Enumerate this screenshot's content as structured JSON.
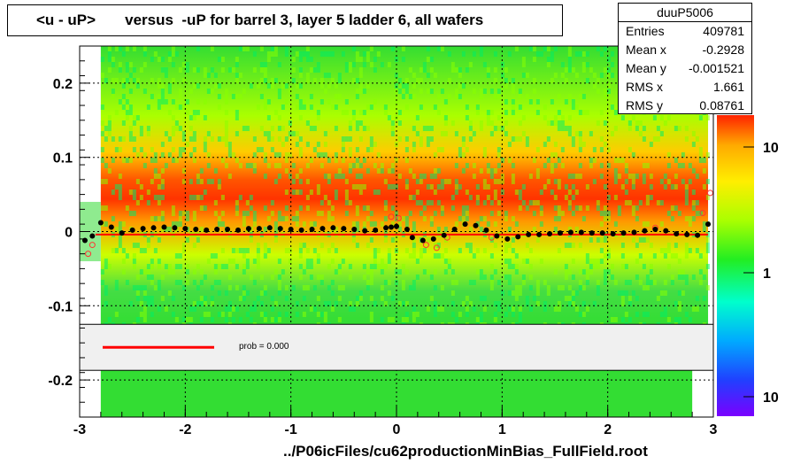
{
  "chart_data": {
    "type": "heatmap",
    "title": "<u - uP>       versus  -uP for barrel 3, layer 5 ladder 6, all wafers",
    "xlabel": "../P06icFiles/cu62productionMinBias_FullField.root",
    "ylabel": "",
    "xlim": [
      -3,
      3
    ],
    "ylim": [
      -0.25,
      0.25
    ],
    "x_ticks": [
      "-3",
      "-2",
      "-1",
      "0",
      "1",
      "2",
      "3"
    ],
    "y_ticks": [
      "-0.2",
      "-0.1",
      "0",
      "0.1",
      "0.2"
    ],
    "z_ticks": [
      "10",
      "1",
      "10"
    ],
    "z_scale": "log",
    "grid": true,
    "stats": {
      "name": "duuP5006",
      "entries": [
        {
          "label": "Entries",
          "value": "409781"
        },
        {
          "label": "Mean x",
          "value": "-0.2928"
        },
        {
          "label": "Mean y",
          "value": "-0.001521"
        },
        {
          "label": "RMS x",
          "value": "1.661"
        },
        {
          "label": "RMS y",
          "value": "0.08761"
        }
      ]
    },
    "fit_legend": "prob = 0.000",
    "profile_points": [
      [
        -2.95,
        -0.012
      ],
      [
        -2.88,
        -0.006
      ],
      [
        -2.8,
        0.012
      ],
      [
        -2.7,
        0.006
      ],
      [
        -2.6,
        -0.002
      ],
      [
        -2.5,
        0.002
      ],
      [
        -2.4,
        0.004
      ],
      [
        -2.3,
        0.005
      ],
      [
        -2.2,
        0.006
      ],
      [
        -2.1,
        0.005
      ],
      [
        -2.0,
        0.004
      ],
      [
        -1.9,
        0.003
      ],
      [
        -1.8,
        0.002
      ],
      [
        -1.7,
        0.003
      ],
      [
        -1.6,
        0.003
      ],
      [
        -1.5,
        0.002
      ],
      [
        -1.4,
        0.004
      ],
      [
        -1.3,
        0.004
      ],
      [
        -1.2,
        0.005
      ],
      [
        -1.1,
        0.004
      ],
      [
        -1.0,
        0.003
      ],
      [
        -0.9,
        0.002
      ],
      [
        -0.8,
        0.003
      ],
      [
        -0.7,
        0.004
      ],
      [
        -0.6,
        0.005
      ],
      [
        -0.5,
        0.004
      ],
      [
        -0.4,
        0.003
      ],
      [
        -0.3,
        0.001
      ],
      [
        -0.2,
        0.002
      ],
      [
        -0.1,
        0.005
      ],
      [
        -0.05,
        0.006
      ],
      [
        0.0,
        0.007
      ],
      [
        0.1,
        0.003
      ],
      [
        0.15,
        -0.008
      ],
      [
        0.25,
        -0.012
      ],
      [
        0.35,
        -0.01
      ],
      [
        0.45,
        -0.005
      ],
      [
        0.55,
        0.003
      ],
      [
        0.65,
        0.01
      ],
      [
        0.75,
        0.008
      ],
      [
        0.85,
        0.002
      ],
      [
        0.95,
        -0.006
      ],
      [
        1.05,
        -0.01
      ],
      [
        1.15,
        -0.007
      ],
      [
        1.25,
        -0.004
      ],
      [
        1.35,
        -0.004
      ],
      [
        1.45,
        -0.003
      ],
      [
        1.55,
        -0.002
      ],
      [
        1.65,
        -0.001
      ],
      [
        1.75,
        -0.001
      ],
      [
        1.85,
        -0.002
      ],
      [
        1.95,
        -0.002
      ],
      [
        2.05,
        -0.003
      ],
      [
        2.15,
        -0.002
      ],
      [
        2.25,
        -0.001
      ],
      [
        2.35,
        0.001
      ],
      [
        2.45,
        0.003
      ],
      [
        2.55,
        0.001
      ],
      [
        2.65,
        -0.003
      ],
      [
        2.75,
        -0.004
      ],
      [
        2.85,
        -0.005
      ],
      [
        2.95,
        0.01
      ]
    ],
    "outlier_points": [
      [
        -2.92,
        -0.03
      ],
      [
        -2.88,
        -0.018
      ],
      [
        -0.05,
        0.02
      ],
      [
        0.02,
        0.018
      ],
      [
        0.28,
        -0.018
      ],
      [
        0.38,
        -0.022
      ],
      [
        0.48,
        -0.008
      ],
      [
        0.9,
        -0.008
      ],
      [
        2.45,
        0.005
      ],
      [
        2.9,
        0.025
      ],
      [
        2.97,
        0.052
      ]
    ],
    "fit_line": {
      "x1": -2.85,
      "x2": 2.95,
      "y": -0.004,
      "color": "#ff0000"
    },
    "legend_band": [
      -0.187,
      -0.125
    ],
    "colors": {
      "high": "#ff0000",
      "mid": "#ffb000",
      "low": "#22ee22",
      "sparse": "#00ffcc",
      "markers": "#000000",
      "outliers": "#ff3333"
    }
  }
}
